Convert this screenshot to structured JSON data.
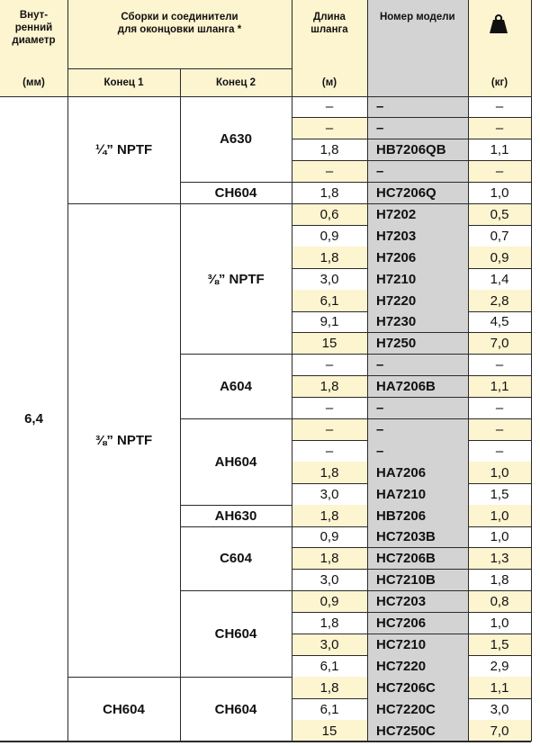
{
  "header": {
    "inner_diameter": "Внут-\nренний\nдиаметр",
    "inner_diameter_unit": "(мм)",
    "assemblies": "Сборки и соединители\nдля оконцовки шланга *",
    "end1": "Конец 1",
    "end2": "Конец 2",
    "hose_length": "Длина\nшланга",
    "hose_length_unit": "(м)",
    "model_number": "Номер модели",
    "weight_unit": "(кг)",
    "weight_icon": "weight-icon"
  },
  "inner_diameter_value": "6,4",
  "groups": [
    {
      "end1": "¼” NPTF",
      "subgroups": [
        {
          "end2": "A630",
          "rows": [
            {
              "length": "–",
              "model": "–",
              "weight": "–",
              "hl": false
            },
            {
              "length": "–",
              "model": "–",
              "weight": "–",
              "hl": true
            },
            {
              "length": "1,8",
              "model": "HB7206QB",
              "weight": "1,1",
              "hl": false
            },
            {
              "length": "–",
              "model": "–",
              "weight": "–",
              "hl": true
            }
          ]
        },
        {
          "end2": "CH604",
          "rows": [
            {
              "length": "1,8",
              "model": "HC7206Q",
              "weight": "1,0",
              "hl": false
            }
          ]
        }
      ]
    },
    {
      "end1": "⅜” NPTF",
      "subgroups": [
        {
          "end2": "⅜” NPTF",
          "rows": [
            {
              "length": "0,6",
              "model": "H7202",
              "weight": "0,5",
              "hl": true
            },
            {
              "length": "0,9",
              "model": "H7203",
              "weight": "0,7",
              "hl": false
            },
            {
              "length": "1,8",
              "model": "H7206",
              "weight": "0,9",
              "hl": true
            },
            {
              "length": "3,0",
              "model": "H7210",
              "weight": "1,4",
              "hl": false
            },
            {
              "length": "6,1",
              "model": "H7220",
              "weight": "2,8",
              "hl": true
            },
            {
              "length": "9,1",
              "model": "H7230",
              "weight": "4,5",
              "hl": false
            },
            {
              "length": "15",
              "model": "H7250",
              "weight": "7,0",
              "hl": true
            }
          ]
        },
        {
          "end2": "A604",
          "rows": [
            {
              "length": "–",
              "model": "–",
              "weight": "–",
              "hl": false
            },
            {
              "length": "1,8",
              "model": "HA7206B",
              "weight": "1,1",
              "hl": true
            },
            {
              "length": "–",
              "model": "–",
              "weight": "–",
              "hl": false
            }
          ]
        },
        {
          "end2": "AH604",
          "rows": [
            {
              "length": "–",
              "model": "–",
              "weight": "–",
              "hl": true
            },
            {
              "length": "–",
              "model": "–",
              "weight": "–",
              "hl": false
            },
            {
              "length": "1,8",
              "model": "HA7206",
              "weight": "1,0",
              "hl": true
            },
            {
              "length": "3,0",
              "model": "HA7210",
              "weight": "1,5",
              "hl": false
            }
          ]
        },
        {
          "end2": "AH630",
          "rows": [
            {
              "length": "1,8",
              "model": "HB7206",
              "weight": "1,0",
              "hl": true
            }
          ]
        },
        {
          "end2": "C604",
          "rows": [
            {
              "length": "0,9",
              "model": "HC7203B",
              "weight": "1,0",
              "hl": false
            },
            {
              "length": "1,8",
              "model": "HC7206B",
              "weight": "1,3",
              "hl": true
            },
            {
              "length": "3,0",
              "model": "HC7210B",
              "weight": "1,8",
              "hl": false
            }
          ]
        },
        {
          "end2": "CH604",
          "rows": [
            {
              "length": "0,9",
              "model": "HC7203",
              "weight": "0,8",
              "hl": true
            },
            {
              "length": "1,8",
              "model": "HC7206",
              "weight": "1,0",
              "hl": false
            },
            {
              "length": "3,0",
              "model": "HC7210",
              "weight": "1,5",
              "hl": true
            },
            {
              "length": "6,1",
              "model": "HC7220",
              "weight": "2,9",
              "hl": false
            }
          ]
        }
      ]
    },
    {
      "end1": "CH604",
      "subgroups": [
        {
          "end2": "CH604",
          "rows": [
            {
              "length": "1,8",
              "model": "HC7206C",
              "weight": "1,1",
              "hl": true
            },
            {
              "length": "6,1",
              "model": "HC7220C",
              "weight": "3,0",
              "hl": false
            },
            {
              "length": "15",
              "model": "HC7250C",
              "weight": "7,0",
              "hl": true
            }
          ]
        }
      ]
    }
  ]
}
